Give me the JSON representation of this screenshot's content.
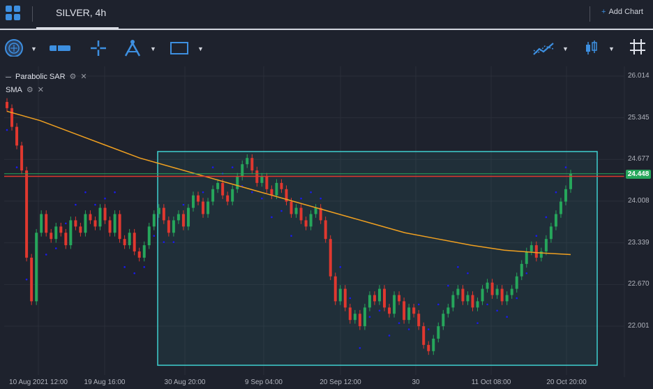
{
  "header": {
    "symbol_title": "SILVER, 4h",
    "add_chart_label": "Add Chart",
    "add_chart_plus": "+"
  },
  "toolbar": {
    "icons": [
      "cursor-crosshair-icon",
      "measure-ruler-icon",
      "crosshair-icon",
      "fibonacci-compass-icon",
      "rectangle-icon",
      "indicators-icon",
      "candle-style-icon",
      "grid-toggle-icon"
    ]
  },
  "legend": {
    "parabolic_sar": "Parabolic SAR",
    "sma": "SMA",
    "close_glyph": "✕"
  },
  "colors": {
    "background": "#1e222d",
    "grid": "#2a2e39",
    "up_candle": "#26a65b",
    "down_candle": "#e0382f",
    "sma": "#f0a020",
    "sar": "#1a1af0",
    "rectangle": "#3fd0d0",
    "last_price_line": "#e0382f",
    "crosshair_line": "#26a65b"
  },
  "chart_data": {
    "type": "candlestick",
    "title": "SILVER, 4h",
    "y_axis_ticks": [
      "26.014",
      "25.345",
      "24.677",
      "24.008",
      "23.339",
      "22.670",
      "22.001"
    ],
    "y_range": [
      21.45,
      26.1
    ],
    "x_axis_ticks": [
      "10 Aug 2021 12:00",
      "19 Aug 16:00",
      "30 Aug 20:00",
      "9 Sep 04:00",
      "20 Sep 12:00",
      "30",
      "11 Oct 08:00",
      "20 Oct 20:00"
    ],
    "last_price": "24.448",
    "last_price_value": 24.448,
    "reference_line_value": 24.405,
    "series": [
      {
        "name": "SILVER 4h close (approx)",
        "close": [
          25.5,
          25.2,
          24.9,
          24.5,
          23.1,
          22.4,
          23.5,
          23.8,
          23.5,
          23.4,
          23.6,
          23.5,
          23.3,
          23.7,
          23.6,
          23.5,
          23.8,
          23.7,
          23.6,
          23.9,
          23.7,
          23.5,
          23.8,
          23.4,
          23.3,
          23.5,
          23.2,
          23.1,
          23.3,
          23.6,
          23.8,
          23.9,
          23.7,
          23.5,
          23.7,
          23.8,
          23.6,
          23.9,
          24.1,
          24.0,
          23.8,
          24.0,
          24.2,
          24.3,
          24.1,
          24.0,
          24.2,
          24.4,
          24.6,
          24.7,
          24.5,
          24.3,
          24.4,
          24.2,
          24.1,
          24.3,
          24.2,
          24.0,
          23.8,
          23.9,
          23.7,
          23.6,
          23.8,
          23.9,
          23.7,
          23.4,
          22.8,
          22.4,
          22.6,
          22.3,
          22.1,
          22.2,
          22.0,
          22.3,
          22.5,
          22.4,
          22.6,
          22.3,
          22.2,
          22.5,
          22.4,
          22.1,
          22.3,
          22.2,
          22.0,
          21.7,
          21.6,
          21.8,
          22.0,
          22.2,
          22.3,
          22.5,
          22.6,
          22.4,
          22.5,
          22.3,
          22.4,
          22.6,
          22.7,
          22.5,
          22.6,
          22.4,
          22.5,
          22.6,
          22.8,
          23.0,
          23.2,
          23.3,
          23.1,
          23.2,
          23.4,
          23.6,
          23.8,
          24.0,
          24.2,
          24.45
        ]
      },
      {
        "name": "SMA",
        "values": [
          25.45,
          25.3,
          25.1,
          24.9,
          24.7,
          24.55,
          24.4,
          24.25,
          24.1,
          23.95,
          23.8,
          23.65,
          23.5,
          23.4,
          23.3,
          23.22,
          23.18,
          23.15
        ]
      }
    ],
    "rectangle": {
      "from": "2021-08-27",
      "to": "2021-10-22",
      "y_top": 24.78,
      "y_bottom": 21.55
    }
  }
}
